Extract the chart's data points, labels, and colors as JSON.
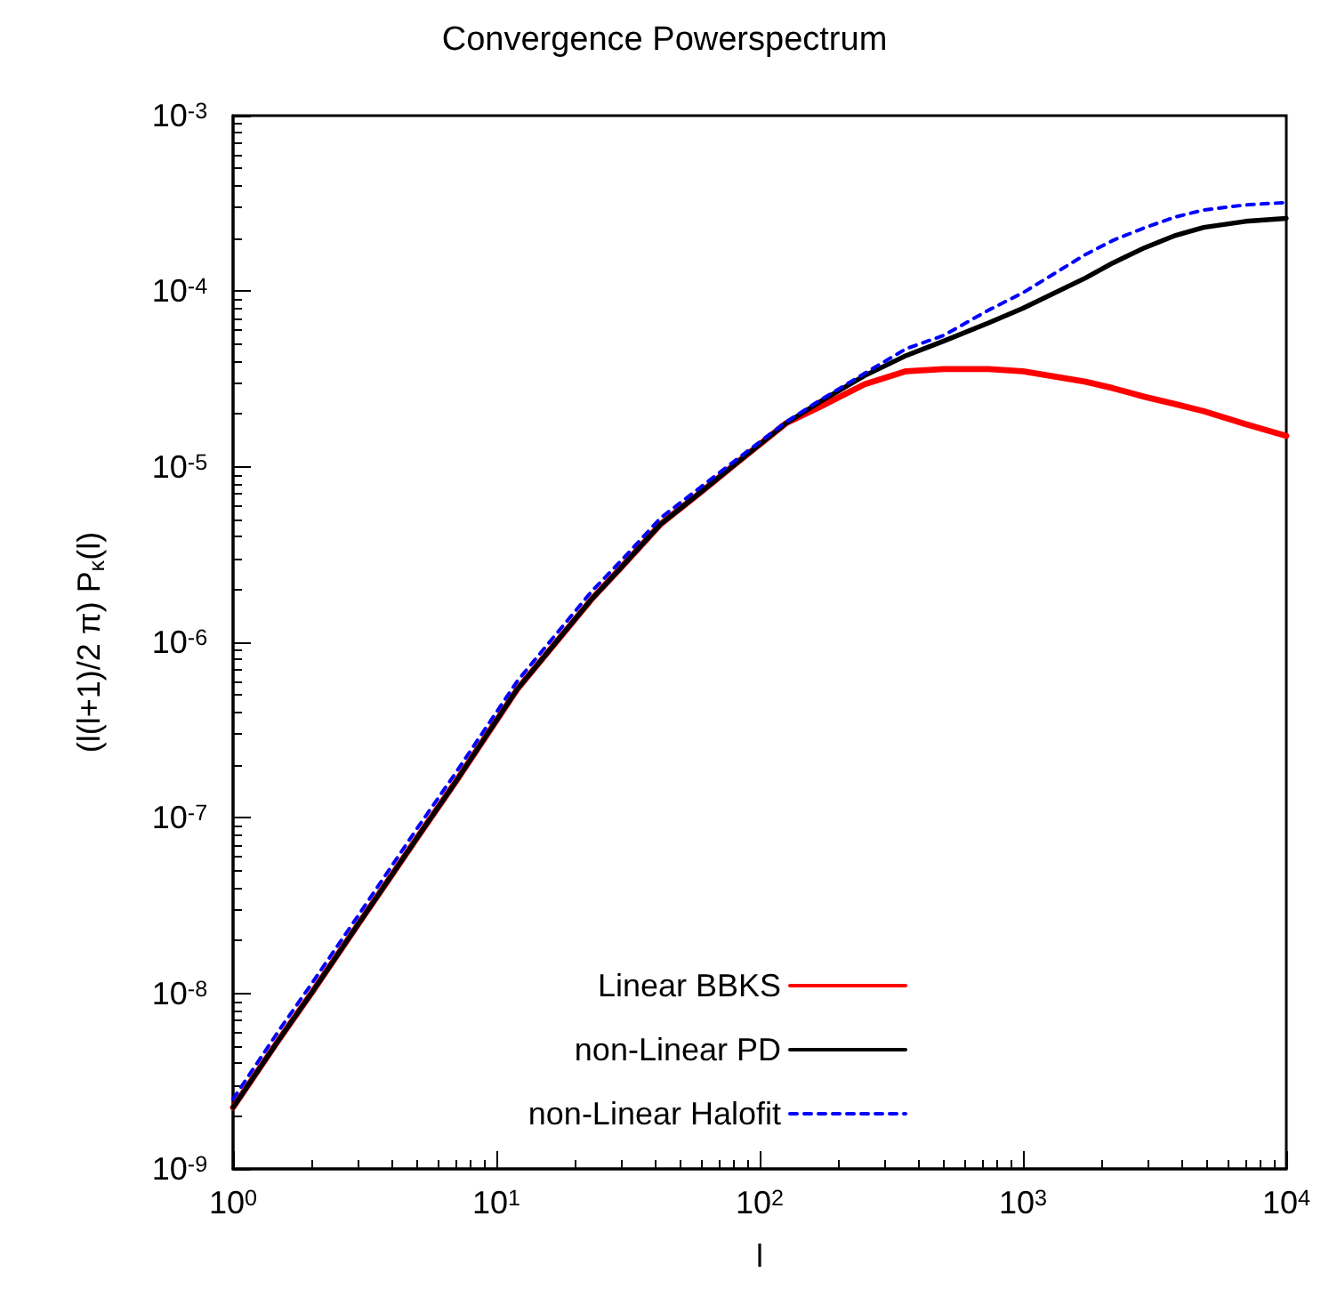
{
  "chart_data": {
    "type": "line",
    "title": "Convergence Powerspectrum",
    "xlabel": "l",
    "ylabel": "(l(l+1)/2 π) P$_{κ}$(l)",
    "log": "xy",
    "grid": false,
    "legend": "bottom",
    "marker": "none",
    "xlim": [
      1,
      10000
    ],
    "ylim": [
      1e-09,
      0.001
    ],
    "xticks": [
      {
        "value": 1,
        "label": "10$^{0}$"
      },
      {
        "value": 10,
        "label": "10$^{1}$"
      },
      {
        "value": 100,
        "label": "10$^{2}$"
      },
      {
        "value": 1000,
        "label": "10$^{3}$"
      },
      {
        "value": 10000,
        "label": "10$^{4}$"
      }
    ],
    "yticks": [
      {
        "value": 1e-09,
        "label": "10$^{-9}$"
      },
      {
        "value": 1e-08,
        "label": "10$^{-8}$"
      },
      {
        "value": 1e-07,
        "label": "10$^{-7}$"
      },
      {
        "value": 1e-06,
        "label": "10$^{-6}$"
      },
      {
        "value": 1e-05,
        "label": "10$^{-5}$"
      },
      {
        "value": 0.0001,
        "label": "10$^{-4}$"
      },
      {
        "value": 0.001,
        "label": "10$^{-3}$"
      }
    ],
    "x": [
      1,
      1.5,
      2,
      3,
      4,
      5,
      7,
      12,
      15,
      23,
      30,
      42,
      60,
      83,
      126,
      170,
      250,
      360,
      500,
      740,
      1000,
      1730,
      2200,
      2900,
      3800,
      4860,
      7000,
      10000
    ],
    "series": [
      {
        "name": "Linear BBKS",
        "color": "#ff0000",
        "line_style": "solid",
        "values": [
          2.24e-09,
          5.5e-09,
          1.02e-08,
          2.5e-08,
          4.7e-08,
          7.7e-08,
          1.6e-07,
          5.4e-07,
          8.1e-07,
          1.76e-06,
          2.7e-06,
          4.7e-06,
          7.2e-06,
          1.07e-05,
          1.77e-05,
          2.2e-05,
          2.95e-05,
          3.5e-05,
          3.6e-05,
          3.6e-05,
          3.5e-05,
          3.05e-05,
          2.8e-05,
          2.5e-05,
          2.27e-05,
          2.07e-05,
          1.75e-05,
          1.5e-05
        ]
      },
      {
        "name": "non-Linear PD",
        "color": "#000000",
        "line_style": "solid",
        "values": [
          2.24e-09,
          5.5e-09,
          1.02e-08,
          2.5e-08,
          4.7e-08,
          7.7e-08,
          1.6e-07,
          5.4e-07,
          8.1e-07,
          1.76e-06,
          2.7e-06,
          4.7e-06,
          7.2e-06,
          1.07e-05,
          1.77e-05,
          2.35e-05,
          3.3e-05,
          4.3e-05,
          5.2e-05,
          6.6e-05,
          8e-05,
          0.000119,
          0.000145,
          0.000177,
          0.000208,
          0.000231,
          0.00025,
          0.00026
        ]
      },
      {
        "name": "non-Linear Halofit",
        "color": "#0000ff",
        "line_style": "dashed",
        "values": [
          2.5e-09,
          6.2e-09,
          1.15e-08,
          2.8e-08,
          5.3e-08,
          8.7e-08,
          1.8e-07,
          6e-07,
          9e-07,
          1.95e-06,
          2.95e-06,
          5.1e-06,
          7.7e-06,
          1.12e-05,
          1.8e-05,
          2.4e-05,
          3.4e-05,
          4.7e-05,
          5.6e-05,
          7.8e-05,
          9.8e-05,
          0.000162,
          0.000195,
          0.00023,
          0.000265,
          0.00029,
          0.00031,
          0.00032
        ]
      }
    ]
  }
}
